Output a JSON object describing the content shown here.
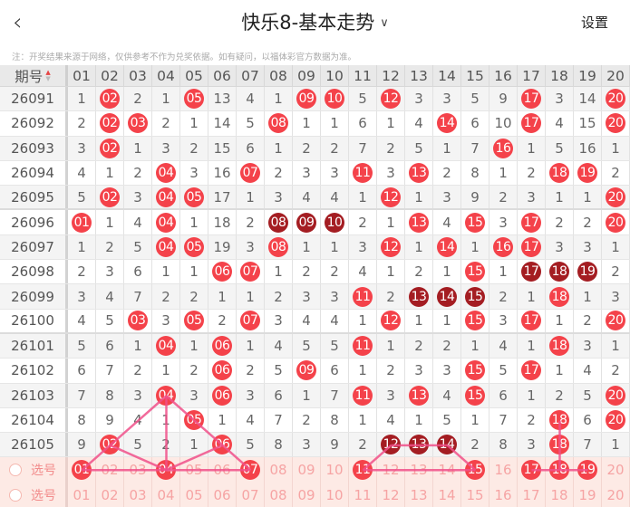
{
  "header": {
    "back_icon": "chevron-left-icon",
    "title": "快乐8-基本走势",
    "dropdown_icon": "chevron-down-icon",
    "settings_label": "设置"
  },
  "note": "注：开奖结果来源于网络，仅供参考不作为兑奖依据。如有疑问，以福体彩官方数据为准。",
  "table": {
    "period_header": "期号",
    "sort_icon": "sort-up-down-icon",
    "columns": [
      "01",
      "02",
      "03",
      "04",
      "05",
      "06",
      "07",
      "08",
      "09",
      "10",
      "11",
      "12",
      "13",
      "14",
      "15",
      "16",
      "17",
      "18",
      "19",
      "20"
    ],
    "rows": [
      {
        "period": "26091",
        "cells": [
          "1",
          "02",
          "2",
          "1",
          "05",
          "13",
          "4",
          "1",
          "09",
          "10",
          "5",
          "12",
          "3",
          "3",
          "5",
          "9",
          "17",
          "3",
          "14",
          "20"
        ],
        "hits": [
          2,
          5,
          9,
          10,
          12,
          17,
          20
        ],
        "dark": []
      },
      {
        "period": "26092",
        "cells": [
          "2",
          "02",
          "03",
          "2",
          "1",
          "14",
          "5",
          "08",
          "1",
          "1",
          "6",
          "1",
          "4",
          "14",
          "6",
          "10",
          "17",
          "4",
          "15",
          "20"
        ],
        "hits": [
          2,
          3,
          8,
          14,
          17,
          20
        ],
        "dark": []
      },
      {
        "period": "26093",
        "cells": [
          "3",
          "02",
          "1",
          "3",
          "2",
          "15",
          "6",
          "1",
          "2",
          "2",
          "7",
          "2",
          "5",
          "1",
          "7",
          "16",
          "1",
          "5",
          "16",
          "1"
        ],
        "hits": [
          2,
          16
        ],
        "dark": []
      },
      {
        "period": "26094",
        "cells": [
          "4",
          "1",
          "2",
          "04",
          "3",
          "16",
          "07",
          "2",
          "3",
          "3",
          "11",
          "3",
          "13",
          "2",
          "8",
          "1",
          "2",
          "18",
          "19",
          "2"
        ],
        "hits": [
          4,
          7,
          11,
          13,
          18,
          19
        ],
        "dark": []
      },
      {
        "period": "26095",
        "cells": [
          "5",
          "02",
          "3",
          "04",
          "05",
          "17",
          "1",
          "3",
          "4",
          "4",
          "1",
          "12",
          "1",
          "3",
          "9",
          "2",
          "3",
          "1",
          "1",
          "20"
        ],
        "hits": [
          2,
          4,
          5,
          12,
          20
        ],
        "dark": []
      },
      {
        "period": "26096",
        "cells": [
          "01",
          "1",
          "4",
          "04",
          "1",
          "18",
          "2",
          "08",
          "09",
          "10",
          "2",
          "1",
          "13",
          "4",
          "15",
          "3",
          "17",
          "2",
          "2",
          "20"
        ],
        "hits": [
          1,
          4,
          8,
          9,
          10,
          13,
          15,
          17,
          20
        ],
        "dark": [
          8,
          9,
          10
        ]
      },
      {
        "period": "26097",
        "cells": [
          "1",
          "2",
          "5",
          "04",
          "05",
          "19",
          "3",
          "08",
          "1",
          "1",
          "3",
          "12",
          "1",
          "14",
          "1",
          "16",
          "17",
          "3",
          "3",
          "1"
        ],
        "hits": [
          4,
          5,
          8,
          12,
          14,
          16,
          17
        ],
        "dark": []
      },
      {
        "period": "26098",
        "cells": [
          "2",
          "3",
          "6",
          "1",
          "1",
          "06",
          "07",
          "1",
          "2",
          "2",
          "4",
          "1",
          "2",
          "1",
          "15",
          "1",
          "17",
          "18",
          "19",
          "2"
        ],
        "hits": [
          6,
          7,
          15,
          17,
          18,
          19
        ],
        "dark": [
          17,
          18,
          19
        ]
      },
      {
        "period": "26099",
        "cells": [
          "3",
          "4",
          "7",
          "2",
          "2",
          "1",
          "1",
          "2",
          "3",
          "3",
          "11",
          "2",
          "13",
          "14",
          "15",
          "2",
          "1",
          "18",
          "1",
          "3"
        ],
        "hits": [
          11,
          13,
          14,
          15,
          18
        ],
        "dark": [
          13,
          14,
          15
        ]
      },
      {
        "period": "26100",
        "cells": [
          "4",
          "5",
          "03",
          "3",
          "05",
          "2",
          "07",
          "3",
          "4",
          "4",
          "1",
          "12",
          "1",
          "1",
          "15",
          "3",
          "17",
          "1",
          "2",
          "20"
        ],
        "hits": [
          3,
          5,
          7,
          12,
          15,
          17,
          20
        ],
        "dark": []
      },
      {
        "period": "26101",
        "cells": [
          "5",
          "6",
          "1",
          "04",
          "1",
          "06",
          "1",
          "4",
          "5",
          "5",
          "11",
          "1",
          "2",
          "2",
          "1",
          "4",
          "1",
          "18",
          "3",
          "1"
        ],
        "hits": [
          4,
          6,
          11,
          18
        ],
        "dark": []
      },
      {
        "period": "26102",
        "cells": [
          "6",
          "7",
          "2",
          "1",
          "2",
          "06",
          "2",
          "5",
          "09",
          "6",
          "1",
          "2",
          "3",
          "3",
          "15",
          "5",
          "17",
          "1",
          "4",
          "2"
        ],
        "hits": [
          6,
          9,
          15,
          17
        ],
        "dark": []
      },
      {
        "period": "26103",
        "cells": [
          "7",
          "8",
          "3",
          "04",
          "3",
          "06",
          "3",
          "6",
          "1",
          "7",
          "11",
          "3",
          "13",
          "4",
          "15",
          "6",
          "1",
          "2",
          "5",
          "20"
        ],
        "hits": [
          4,
          6,
          11,
          13,
          15,
          20
        ],
        "dark": []
      },
      {
        "period": "26104",
        "cells": [
          "8",
          "9",
          "4",
          "1",
          "05",
          "1",
          "4",
          "7",
          "2",
          "8",
          "1",
          "4",
          "1",
          "5",
          "1",
          "7",
          "2",
          "18",
          "6",
          "20"
        ],
        "hits": [
          5,
          18,
          20
        ],
        "dark": []
      },
      {
        "period": "26105",
        "cells": [
          "9",
          "02",
          "5",
          "2",
          "1",
          "06",
          "5",
          "8",
          "3",
          "9",
          "2",
          "12",
          "13",
          "14",
          "2",
          "8",
          "3",
          "18",
          "7",
          "1"
        ],
        "hits": [
          2,
          6,
          12,
          13,
          14,
          18
        ],
        "dark": [
          12,
          13,
          14
        ]
      }
    ],
    "select_rows": [
      {
        "label": "选号",
        "selected": [
          1,
          4,
          7,
          11,
          15,
          17,
          18,
          19
        ]
      },
      {
        "label": "选号",
        "selected": []
      }
    ],
    "trend_lines": {
      "color": "#f0508a",
      "segments": [
        [
          [
            "26105",
            2
          ],
          [
            "26103",
            4
          ]
        ],
        [
          [
            "26103",
            4
          ],
          [
            "26104",
            5
          ]
        ],
        [
          [
            "26104",
            5
          ],
          [
            "26105",
            6
          ]
        ],
        [
          [
            "26103",
            4
          ],
          [
            "选号",
            4
          ]
        ],
        [
          [
            "26105",
            2
          ],
          [
            "选号",
            4
          ]
        ],
        [
          [
            "选号",
            4
          ],
          [
            "26105",
            6
          ]
        ],
        [
          [
            "选号",
            1
          ],
          [
            "26105",
            2
          ]
        ],
        [
          [
            "26105",
            6
          ],
          [
            "选号",
            7
          ]
        ],
        [
          [
            "选号",
            1
          ],
          [
            "选号",
            7
          ]
        ],
        [
          [
            "选号",
            11
          ],
          [
            "26105",
            12
          ]
        ],
        [
          [
            "26105",
            12
          ],
          [
            "26105",
            14
          ]
        ],
        [
          [
            "26105",
            14
          ],
          [
            "选号",
            15
          ]
        ],
        [
          [
            "选号",
            11
          ],
          [
            "选号",
            15
          ]
        ],
        [
          [
            "选号",
            17
          ],
          [
            "选号",
            19
          ]
        ],
        [
          [
            "26104",
            18
          ],
          [
            "选号",
            18
          ]
        ]
      ]
    }
  },
  "colors": {
    "ball": "#f4424a",
    "ball_dark": "#a41d22",
    "select_bg": "#fdeae5",
    "line": "#f0508a"
  }
}
